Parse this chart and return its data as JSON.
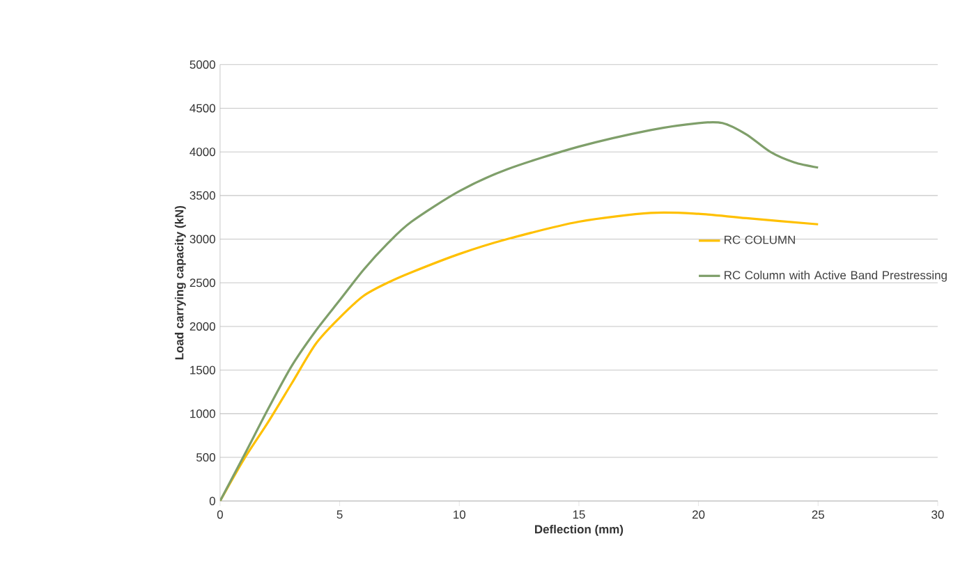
{
  "chart_data": {
    "type": "line",
    "xlabel": "Deflection (mm)",
    "ylabel": "Load carrying capacity (kN)",
    "xlim": [
      0,
      30
    ],
    "xticks": [
      0,
      5,
      10,
      15,
      20,
      25,
      30
    ],
    "ylim": [
      0,
      5000
    ],
    "yticks": [
      0,
      500,
      1000,
      1500,
      2000,
      2500,
      3000,
      3500,
      4000,
      4500,
      5000
    ],
    "grid": "y",
    "legend": "right",
    "marker": "none",
    "line_style": "solid",
    "series": [
      {
        "name": "RC COLUMN",
        "color": "#ffc000",
        "x": [
          0,
          1,
          2,
          3,
          4,
          5,
          6,
          7,
          8,
          10,
          12,
          15,
          18,
          20,
          22,
          25
        ],
        "values": [
          0,
          480,
          900,
          1350,
          1800,
          2100,
          2350,
          2500,
          2620,
          2830,
          3000,
          3200,
          3300,
          3290,
          3240,
          3170
        ]
      },
      {
        "name": "RC Column with Active Band Prestressing",
        "color": "#7f9f6a",
        "x": [
          0,
          1,
          2,
          3,
          4,
          5,
          6,
          7,
          8,
          10,
          12,
          15,
          18,
          20,
          21,
          22,
          23,
          24,
          25
        ],
        "values": [
          0,
          520,
          1050,
          1550,
          1950,
          2300,
          2650,
          2950,
          3200,
          3550,
          3800,
          4060,
          4250,
          4330,
          4330,
          4200,
          4000,
          3880,
          3820
        ]
      }
    ]
  }
}
